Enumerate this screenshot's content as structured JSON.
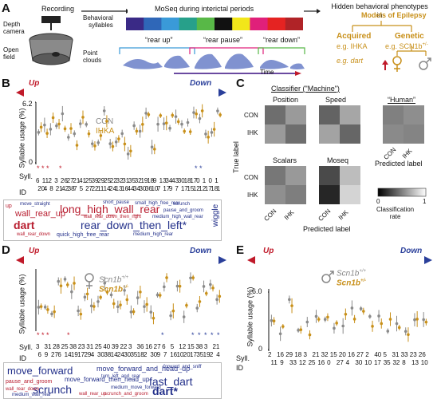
{
  "panelA": {
    "label": "A",
    "depth_camera": "Depth\ncamera",
    "open_field": "Open\nfield",
    "recording": "Recording",
    "moseq_title": "MoSeq during interictal periods",
    "behavioral_syllables": "Behavioral\nsyllables",
    "point_clouds": "Point\nclouds",
    "syllable_colors": [
      "#3a2a86",
      "#2f67b8",
      "#3a9ad8",
      "#27a08a",
      "#58b847",
      "#111111",
      "#f2e61a",
      "#e0207a",
      "#e52322",
      "#b02327"
    ],
    "rear_up": "“rear up”",
    "rear_pause": "“rear pause”",
    "rear_down": "“rear down”",
    "time": "Time",
    "hidden_title": "Hidden behavioral phenotypes\nin",
    "models": "Models of Epilepsy",
    "acquired": "Acquired",
    "genetic": "Genetic",
    "eg_ihka": "e.g. IHKA",
    "eg_scn": "e.g. SCN1b",
    "scn_sup": "+/-",
    "eg_dart": "e.g. dart"
  },
  "panelB": {
    "label": "B",
    "up": "Up",
    "down": "Down",
    "legend_con": "CON",
    "legend_ihka": "IHKA",
    "ylabel": "Syllable usage (%)",
    "ymax_label": "6.2",
    "ymin_label": "0",
    "syll_label": "Syll.",
    "id_label": "ID",
    "row1": [
      "6",
      "11",
      "2",
      "3",
      "26",
      "27",
      "21",
      "41",
      "25",
      "39",
      "29",
      "25",
      "22",
      "32",
      "31",
      "35",
      "32",
      "19",
      "18",
      "9",
      "13",
      "34",
      "43",
      "30",
      "18",
      "17",
      "0",
      "1",
      "0",
      "1"
    ],
    "row2": [
      "20",
      "4",
      "8",
      "21",
      "42",
      "38",
      "7",
      "5",
      "27",
      "22",
      "11",
      "14",
      "24",
      "13",
      "16",
      "44",
      "34",
      "30",
      "36",
      "10",
      "7",
      "17",
      "9",
      "7",
      "17",
      "15",
      "12",
      "12",
      "17",
      "18",
      "1"
    ],
    "cloud": {
      "w1": "wall_rear_up",
      "w2": "long_high_wall_rear",
      "w3": "dart",
      "w4": "rear_down_then_left*",
      "w5": "wiggle",
      "w6": "up",
      "w7": "quick_high_free_rear",
      "w8": "medium_high_rear",
      "w9": "small_high_free_rear",
      "w10": "wall_rear_down_then_right",
      "w11": "move_straight",
      "w12": "scrunch",
      "w13": "pause_and_groom",
      "w14": "short_pause",
      "w15": "wall_rear_down",
      "w16": "medium_high_wall_rear"
    }
  },
  "panelC": {
    "label": "C",
    "title": "Classifier (\"Machine\")",
    "position": "Position",
    "speed": "Speed",
    "human": "“Human”",
    "scalars": "Scalars",
    "moseq": "Moseq",
    "true_label": "True label",
    "predicted_label": "Predicted label",
    "con": "CON",
    "ihk": "IHK",
    "cb_min": "0",
    "cb_max": "1",
    "classification_rate": "Classification\nrate"
  },
  "panelD": {
    "label": "D",
    "up": "Up",
    "down": "Down",
    "leg1": "Scn1b",
    "leg1_sup": "+/+",
    "leg2": "Scn1b",
    "leg2_sup": "+/-",
    "ylabel": "Syllable usage (%)",
    "syll_label": "Syll.",
    "id_label": "ID",
    "row1": [
      "3",
      "31",
      "28",
      "25",
      "38",
      "23",
      "31",
      "25",
      "40",
      "39",
      "22",
      "3",
      "36",
      "16",
      "27",
      "6",
      "5",
      "12",
      "15",
      "38",
      "3",
      "21"
    ],
    "row2": [
      "6",
      "9",
      "27",
      "6",
      "14",
      "19",
      "17",
      "29",
      "4",
      "30",
      "38",
      "14",
      "24",
      "30",
      "35",
      "18",
      "2",
      "30",
      "9",
      "7",
      "16",
      "10",
      "20",
      "17",
      "35",
      "19",
      "2",
      "4"
    ],
    "cloud": {
      "w1": "move_forward",
      "w2": "move_forward_and_head_up",
      "w3": "fast_dart",
      "w4": "scrunch",
      "w5": "dart*",
      "w6": "move_forward_then_head_up",
      "w7": "pause_and_groom",
      "w8": "wall_rear_down",
      "w9": "medium_wall_rear",
      "w10": "medium_move_forward",
      "w11": "scrunch_and_groom",
      "w12": "forward_and_sniff",
      "w13": "wall_rear_up",
      "w14": "turn_left_and_rear"
    }
  },
  "panelE": {
    "label": "E",
    "up": "Up",
    "down": "Down",
    "leg1": "Scn1b",
    "leg1_sup": "+/+",
    "leg2": "Scn1b",
    "leg2_sup": "+/-",
    "ylabel": "Syllable usage (%)",
    "ymax_label": "6.0",
    "ymin_label": "0",
    "syll_label": "Syll.",
    "id_label": "ID",
    "row1": [
      "2",
      "16",
      "29",
      "18",
      "3",
      "21",
      "32",
      "15",
      "20",
      "16",
      "27",
      "2",
      "40",
      "5",
      "31",
      "33",
      "23",
      "26"
    ],
    "row2": [
      "11",
      "9",
      "33",
      "12",
      "25",
      "16",
      "0",
      "27",
      "4",
      "30",
      "10",
      "17",
      "35",
      "32",
      "8",
      "13",
      "10"
    ]
  },
  "colors": {
    "gold": "#c8901a",
    "grey": "#8a8a8a",
    "red": "#c01a2a",
    "blue": "#2a3f9a"
  }
}
